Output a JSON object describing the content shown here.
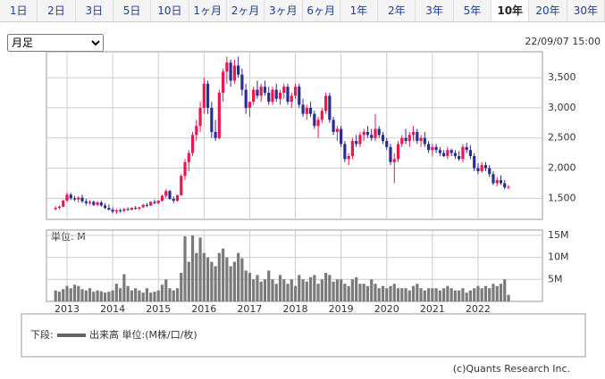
{
  "tabs": [
    "1日",
    "2日",
    "3日",
    "5日",
    "10日",
    "1ヶ月",
    "2ヶ月",
    "3ヶ月",
    "6ヶ月",
    "1年",
    "2年",
    "3年",
    "5年",
    "10年",
    "20年",
    "30年"
  ],
  "active_tab": "10年",
  "period": "月足",
  "timestamp": "22/09/07 15:00",
  "legend": {
    "prefix": "下段:",
    "label": "出来高 単位:(M株/口/枚)"
  },
  "copyright": "(c)Quants Research Inc.",
  "chart_data": {
    "type": "candlestick",
    "x": [
      2012.75,
      2012.833,
      2012.917,
      2013,
      2013.083,
      2013.167,
      2013.25,
      2013.333,
      2013.417,
      2013.5,
      2013.583,
      2013.667,
      2013.75,
      2013.833,
      2013.917,
      2014,
      2014.083,
      2014.167,
      2014.25,
      2014.333,
      2014.417,
      2014.5,
      2014.583,
      2014.667,
      2014.75,
      2014.833,
      2014.917,
      2015,
      2015.083,
      2015.167,
      2015.25,
      2015.333,
      2015.417,
      2015.5,
      2015.583,
      2015.667,
      2015.75,
      2015.833,
      2015.917,
      2016,
      2016.083,
      2016.167,
      2016.25,
      2016.333,
      2016.417,
      2016.5,
      2016.583,
      2016.667,
      2016.75,
      2016.833,
      2016.917,
      2017,
      2017.083,
      2017.167,
      2017.25,
      2017.333,
      2017.417,
      2017.5,
      2017.583,
      2017.667,
      2017.75,
      2017.833,
      2017.917,
      2018,
      2018.083,
      2018.167,
      2018.25,
      2018.333,
      2018.417,
      2018.5,
      2018.583,
      2018.667,
      2018.75,
      2018.833,
      2018.917,
      2019,
      2019.083,
      2019.167,
      2019.25,
      2019.333,
      2019.417,
      2019.5,
      2019.583,
      2019.667,
      2019.75,
      2019.833,
      2019.917,
      2020,
      2020.083,
      2020.167,
      2020.25,
      2020.333,
      2020.417,
      2020.5,
      2020.583,
      2020.667,
      2020.75,
      2020.833,
      2020.917,
      2021,
      2021.083,
      2021.167,
      2021.25,
      2021.333,
      2021.417,
      2021.5,
      2021.583,
      2021.667,
      2021.75,
      2021.833,
      2021.917,
      2022,
      2022.083,
      2022.167,
      2022.25,
      2022.333,
      2022.417,
      2022.5,
      2022.583,
      2022.667
    ],
    "candles": [
      [
        1320,
        1370,
        1300,
        1340
      ],
      [
        1340,
        1380,
        1320,
        1360
      ],
      [
        1360,
        1480,
        1350,
        1460
      ],
      [
        1460,
        1600,
        1440,
        1560
      ],
      [
        1560,
        1590,
        1470,
        1500
      ],
      [
        1500,
        1540,
        1450,
        1480
      ],
      [
        1480,
        1530,
        1430,
        1510
      ],
      [
        1510,
        1560,
        1420,
        1450
      ],
      [
        1450,
        1490,
        1380,
        1420
      ],
      [
        1420,
        1470,
        1390,
        1440
      ],
      [
        1440,
        1460,
        1370,
        1390
      ],
      [
        1390,
        1450,
        1370,
        1430
      ],
      [
        1430,
        1460,
        1360,
        1380
      ],
      [
        1380,
        1420,
        1320,
        1340
      ],
      [
        1340,
        1400,
        1300,
        1310
      ],
      [
        1310,
        1350,
        1250,
        1280
      ],
      [
        1280,
        1320,
        1240,
        1300
      ],
      [
        1300,
        1330,
        1260,
        1290
      ],
      [
        1290,
        1340,
        1270,
        1320
      ],
      [
        1320,
        1350,
        1290,
        1310
      ],
      [
        1310,
        1350,
        1300,
        1340
      ],
      [
        1340,
        1370,
        1310,
        1330
      ],
      [
        1330,
        1360,
        1300,
        1350
      ],
      [
        1350,
        1400,
        1340,
        1390
      ],
      [
        1390,
        1420,
        1350,
        1380
      ],
      [
        1380,
        1450,
        1370,
        1440
      ],
      [
        1440,
        1480,
        1400,
        1420
      ],
      [
        1420,
        1470,
        1400,
        1460
      ],
      [
        1460,
        1560,
        1440,
        1540
      ],
      [
        1540,
        1650,
        1500,
        1620
      ],
      [
        1620,
        1640,
        1470,
        1490
      ],
      [
        1490,
        1530,
        1420,
        1460
      ],
      [
        1460,
        1560,
        1440,
        1550
      ],
      [
        1550,
        1900,
        1540,
        1870
      ],
      [
        1870,
        2150,
        1800,
        2100
      ],
      [
        2100,
        2300,
        1950,
        2250
      ],
      [
        2250,
        2600,
        2200,
        2550
      ],
      [
        2550,
        2800,
        2450,
        2700
      ],
      [
        2700,
        3100,
        2600,
        3000
      ],
      [
        3000,
        3500,
        2900,
        3400
      ],
      [
        3400,
        3450,
        2900,
        3000
      ],
      [
        3000,
        3100,
        2500,
        2600
      ],
      [
        2600,
        2800,
        2450,
        2500
      ],
      [
        2500,
        3300,
        2480,
        3250
      ],
      [
        3250,
        3650,
        3100,
        3600
      ],
      [
        3600,
        3850,
        3400,
        3750
      ],
      [
        3750,
        3800,
        3350,
        3450
      ],
      [
        3450,
        3800,
        3400,
        3700
      ],
      [
        3700,
        3850,
        3500,
        3550
      ],
      [
        3550,
        3650,
        3200,
        3300
      ],
      [
        3300,
        3400,
        2900,
        3000
      ],
      [
        3000,
        3100,
        2850,
        3100
      ],
      [
        3100,
        3350,
        3050,
        3300
      ],
      [
        3300,
        3450,
        3150,
        3200
      ],
      [
        3200,
        3400,
        3100,
        3350
      ],
      [
        3350,
        3450,
        3200,
        3250
      ],
      [
        3250,
        3350,
        3050,
        3100
      ],
      [
        3100,
        3350,
        3050,
        3300
      ],
      [
        3300,
        3400,
        3100,
        3150
      ],
      [
        3150,
        3300,
        3050,
        3250
      ],
      [
        3250,
        3400,
        3150,
        3350
      ],
      [
        3350,
        3400,
        3050,
        3100
      ],
      [
        3100,
        3250,
        3000,
        3200
      ],
      [
        3200,
        3400,
        3150,
        3350
      ],
      [
        3350,
        3400,
        3000,
        3050
      ],
      [
        3050,
        3150,
        2850,
        2900
      ],
      [
        2900,
        3050,
        2800,
        3000
      ],
      [
        3000,
        3100,
        2850,
        2900
      ],
      [
        2900,
        2950,
        2650,
        2700
      ],
      [
        2700,
        2850,
        2500,
        2800
      ],
      [
        2800,
        3000,
        2750,
        2950
      ],
      [
        2950,
        3250,
        2900,
        3200
      ],
      [
        3200,
        3250,
        2750,
        2800
      ],
      [
        2800,
        2850,
        2550,
        2600
      ],
      [
        2600,
        2700,
        2450,
        2650
      ],
      [
        2650,
        2700,
        2350,
        2400
      ],
      [
        2400,
        2450,
        2100,
        2150
      ],
      [
        2150,
        2250,
        2050,
        2200
      ],
      [
        2200,
        2500,
        2150,
        2450
      ],
      [
        2450,
        2550,
        2350,
        2400
      ],
      [
        2400,
        2600,
        2350,
        2550
      ],
      [
        2550,
        2650,
        2450,
        2600
      ],
      [
        2600,
        2700,
        2500,
        2550
      ],
      [
        2550,
        2650,
        2450,
        2500
      ],
      [
        2500,
        2900,
        2450,
        2650
      ],
      [
        2650,
        2700,
        2500,
        2550
      ],
      [
        2550,
        2600,
        2400,
        2450
      ],
      [
        2450,
        2500,
        2300,
        2350
      ],
      [
        2350,
        2400,
        2050,
        2100
      ],
      [
        2100,
        2250,
        1750,
        2150
      ],
      [
        2150,
        2450,
        2100,
        2400
      ],
      [
        2400,
        2550,
        2350,
        2500
      ],
      [
        2500,
        2650,
        2400,
        2450
      ],
      [
        2450,
        2600,
        2350,
        2550
      ],
      [
        2550,
        2700,
        2450,
        2600
      ],
      [
        2600,
        2650,
        2400,
        2450
      ],
      [
        2450,
        2550,
        2350,
        2500
      ],
      [
        2500,
        2600,
        2350,
        2400
      ],
      [
        2400,
        2450,
        2250,
        2300
      ],
      [
        2300,
        2400,
        2200,
        2350
      ],
      [
        2350,
        2400,
        2250,
        2300
      ],
      [
        2300,
        2350,
        2200,
        2250
      ],
      [
        2250,
        2300,
        2180,
        2200
      ],
      [
        2200,
        2350,
        2150,
        2300
      ],
      [
        2300,
        2320,
        2200,
        2250
      ],
      [
        2250,
        2300,
        2150,
        2200
      ],
      [
        2200,
        2280,
        2120,
        2150
      ],
      [
        2150,
        2400,
        2100,
        2350
      ],
      [
        2350,
        2420,
        2250,
        2300
      ],
      [
        2300,
        2380,
        2150,
        2200
      ],
      [
        2200,
        2250,
        1950,
        2000
      ],
      [
        2000,
        2080,
        1900,
        1950
      ],
      [
        1950,
        2100,
        1920,
        2050
      ],
      [
        2050,
        2100,
        1950,
        2000
      ],
      [
        2000,
        2050,
        1850,
        1900
      ],
      [
        1900,
        1950,
        1720,
        1750
      ],
      [
        1750,
        1850,
        1700,
        1800
      ],
      [
        1800,
        1880,
        1720,
        1750
      ],
      [
        1750,
        1800,
        1650,
        1680
      ],
      [
        1680,
        1720,
        1650,
        1690
      ]
    ],
    "up_color": "#f0154f",
    "down_color": "#2b2d8f",
    "xlim": [
      2012.55,
      2023.41
    ],
    "xticks": [
      2013,
      2014,
      2015,
      2016,
      2017,
      2018,
      2019,
      2020,
      2021,
      2022
    ],
    "ylim": [
      1150,
      3930
    ],
    "yticks": [
      {
        "value": 1500,
        "label": "1,500"
      },
      {
        "value": 2000,
        "label": "2,000"
      },
      {
        "value": 2500,
        "label": "2,500"
      },
      {
        "value": 3000,
        "label": "3,000"
      },
      {
        "value": 3500,
        "label": "3,500"
      }
    ],
    "grid": true,
    "volume": [
      2.5,
      2.2,
      2.8,
      3.5,
      3,
      3.8,
      3.5,
      2.8,
      2.5,
      3,
      2.2,
      2.5,
      2.3,
      2,
      2.2,
      2.5,
      4,
      3,
      6.2,
      3.5,
      2.5,
      3,
      2.5,
      2,
      3,
      2,
      2.2,
      2.5,
      3.8,
      5,
      3,
      2.5,
      3,
      6.5,
      14.8,
      9,
      15,
      11,
      14.5,
      11,
      10,
      9,
      8,
      11,
      12,
      10,
      8,
      9,
      11,
      9.8,
      7,
      6.5,
      5,
      6,
      4.5,
      5,
      7,
      5,
      4,
      6,
      5,
      4,
      5,
      3.5,
      6,
      5,
      4.5,
      5.5,
      6,
      4,
      5,
      6.5,
      6,
      4.5,
      5,
      5,
      4,
      3.5,
      5,
      5.5,
      4,
      4,
      3.5,
      5,
      4,
      3,
      3.5,
      3,
      3.5,
      4,
      3,
      3,
      3,
      2.5,
      3.5,
      4,
      3,
      2.5,
      3,
      3,
      3,
      2.5,
      3,
      3.5,
      3,
      2.5,
      2.5,
      3,
      2,
      2.5,
      3,
      3.5,
      3,
      3.5,
      3,
      4,
      3.5,
      4,
      5,
      1.5
    ],
    "volume_color": "#7a7a7a",
    "volume_unit": "単位: M",
    "volume_ylim": [
      0,
      16.2
    ],
    "volume_yticks": [
      {
        "value": 5,
        "label": "5M"
      },
      {
        "value": 10,
        "label": "10M"
      },
      {
        "value": 15,
        "label": "15M"
      }
    ]
  }
}
